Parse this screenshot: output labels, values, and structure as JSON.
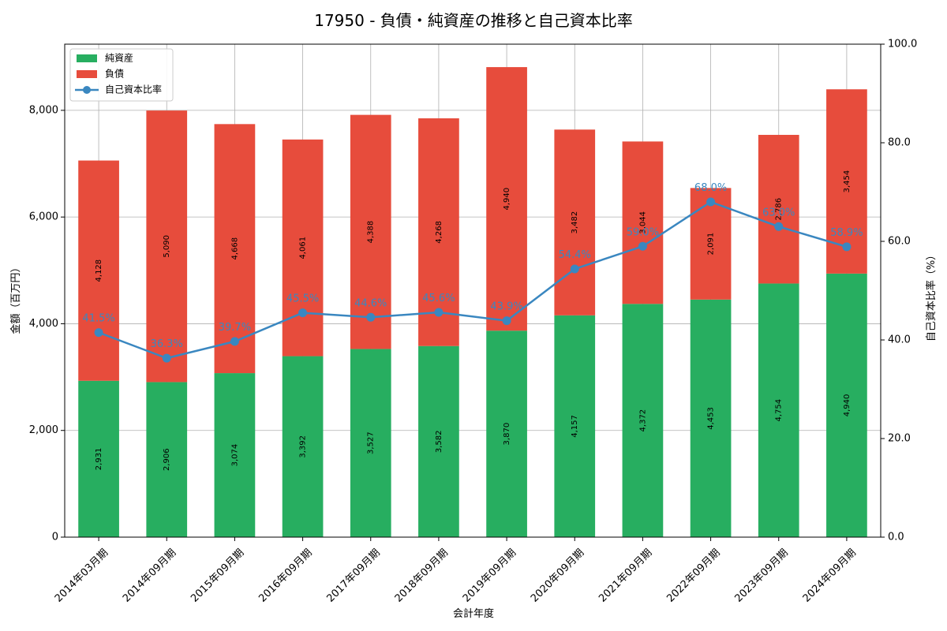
{
  "chart_data": {
    "type": "bar",
    "stacked": true,
    "title": "17950 - 負債・純資産の推移と自己資本比率",
    "xlabel": "会計年度",
    "ylabel": "金額（百万円）",
    "y2label": "自己資本比率（%）",
    "ylim": [
      0,
      9240
    ],
    "y2lim": [
      0,
      100
    ],
    "yticks": [
      0,
      2000,
      4000,
      6000,
      8000
    ],
    "yticks_text": [
      "0",
      "2,000",
      "4,000",
      "6,000",
      "8,000"
    ],
    "y2ticks": [
      0,
      20,
      40,
      60,
      80,
      100
    ],
    "y2ticks_text": [
      "0.0",
      "20.0",
      "40.0",
      "60.0",
      "80.0",
      "100.0"
    ],
    "grid": true,
    "legend_position": "top-left",
    "categories": [
      "2014年03月期",
      "2014年09月期",
      "2015年09月期",
      "2016年09月期",
      "2017年09月期",
      "2018年09月期",
      "2019年09月期",
      "2020年09月期",
      "2021年09月期",
      "2022年09月期",
      "2023年09月期",
      "2024年09月期"
    ],
    "series": [
      {
        "name": "純資産",
        "kind": "bar",
        "color": "#27ae60",
        "values": [
          2931,
          2906,
          3074,
          3392,
          3527,
          3582,
          3870,
          4157,
          4372,
          4453,
          4754,
          4940
        ],
        "labels": [
          "2,931",
          "2,906",
          "3,074",
          "3,392",
          "3,527",
          "3,582",
          "3,870",
          "4,157",
          "4,372",
          "4,453",
          "4,754",
          "4,940"
        ]
      },
      {
        "name": "負債",
        "kind": "bar",
        "color": "#e74c3c",
        "values": [
          4128,
          5090,
          4668,
          4061,
          4388,
          4268,
          4940,
          3482,
          3044,
          2091,
          2786,
          3454
        ],
        "labels": [
          "4,128",
          "5,090",
          "4,668",
          "4,061",
          "4,388",
          "4,268",
          "4,940",
          "3,482",
          "3,044",
          "2,091",
          "2,786",
          "3,454"
        ]
      },
      {
        "name": "自己資本比率",
        "kind": "line",
        "axis": "right",
        "color": "#3a87c0",
        "values": [
          41.5,
          36.3,
          39.7,
          45.5,
          44.6,
          45.6,
          43.9,
          54.4,
          59.0,
          68.0,
          63.0,
          58.9
        ],
        "labels": [
          "41.5%",
          "36.3%",
          "39.7%",
          "45.5%",
          "44.6%",
          "45.6%",
          "43.9%",
          "54.4%",
          "59.0%",
          "68.0%",
          "63.0%",
          "58.9%"
        ]
      }
    ]
  }
}
